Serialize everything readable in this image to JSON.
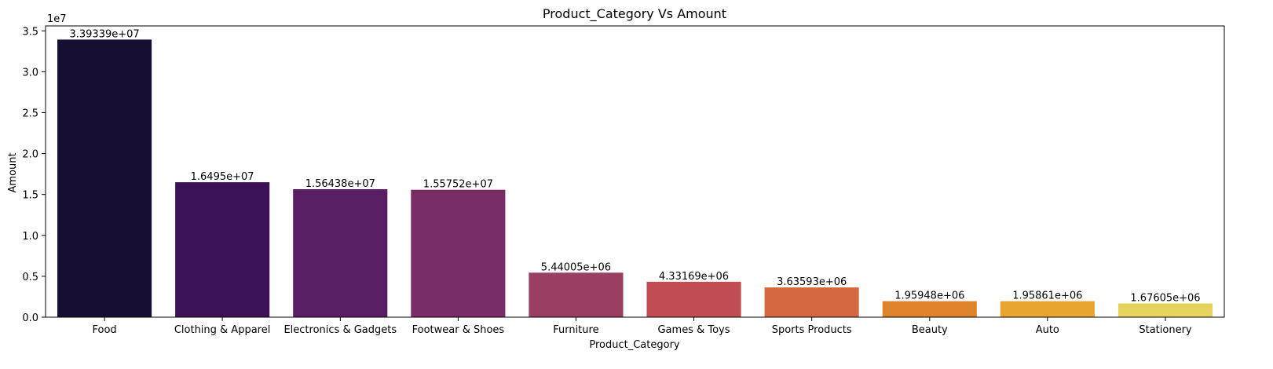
{
  "chart_data": {
    "type": "bar",
    "title": "Product_Category Vs Amount",
    "xlabel": "Product_Category",
    "ylabel": "Amount",
    "y_multiplier_label": "1e7",
    "ylim": [
      0,
      35600000
    ],
    "yticks": [
      0,
      5000000,
      10000000,
      15000000,
      20000000,
      25000000,
      30000000,
      35000000
    ],
    "ytick_labels": [
      "0.0",
      "0.5",
      "1.0",
      "1.5",
      "2.0",
      "2.5",
      "3.0",
      "3.5"
    ],
    "grid": false,
    "categories": [
      "Food",
      "Clothing & Apparel",
      "Electronics & Gadgets",
      "Footwear & Shoes",
      "Furniture",
      "Games & Toys",
      "Sports Products",
      "Beauty",
      "Auto",
      "Stationery"
    ],
    "values": [
      33933900,
      16495000,
      15643800,
      15575200,
      5440050,
      4331690,
      3635930,
      1959480,
      1958610,
      1676050
    ],
    "value_labels": [
      "3.39339e+07",
      "1.6495e+07",
      "1.56438e+07",
      "1.55752e+07",
      "5.44005e+06",
      "4.33169e+06",
      "3.63593e+06",
      "1.95948e+06",
      "1.95861e+06",
      "1.67605e+06"
    ],
    "colors": [
      "#160f32",
      "#3b1255",
      "#581d63",
      "#782d66",
      "#9a3f62",
      "#c04d53",
      "#d4693f",
      "#dd832b",
      "#e8a631",
      "#e6d35d"
    ]
  }
}
